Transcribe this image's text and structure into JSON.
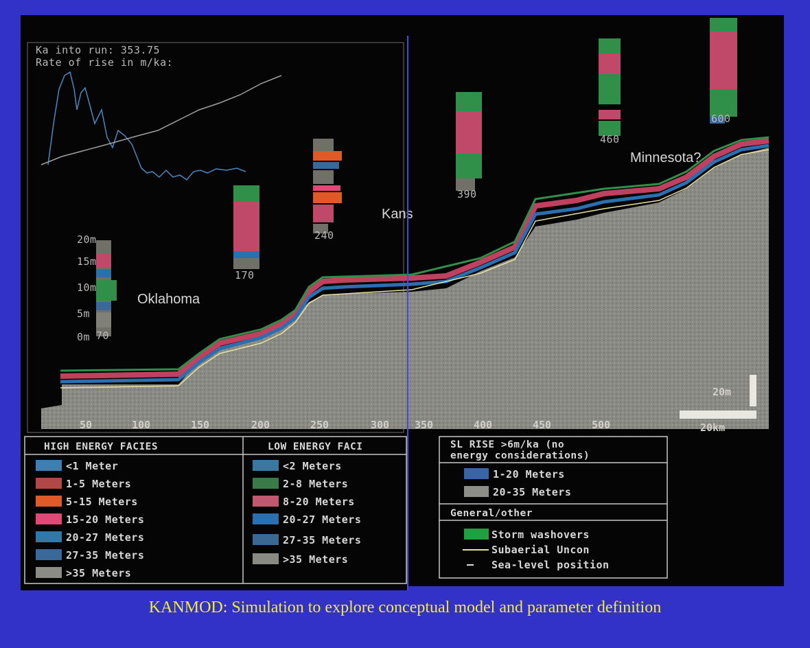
{
  "hud": {
    "run_line": "Ka into run: 353.75",
    "rate_line": "Rate of rise in m/ka:"
  },
  "places": {
    "oklahoma": "Oklahoma",
    "kansas": "Kans",
    "minnesota": "Minnesota?"
  },
  "axis_ticks": [
    "50",
    "100",
    "150",
    "200",
    "250",
    "300",
    "350",
    "400",
    "450",
    "500"
  ],
  "scale": {
    "vertical": "20m",
    "horizontal": "20km"
  },
  "column_labels": [
    "70",
    "170",
    "240",
    "390",
    "460",
    "600"
  ],
  "depth_scale": [
    "20m",
    "15m",
    "10m",
    "5m",
    "0m"
  ],
  "legend": {
    "high_energy": {
      "title": "HIGH ENERGY FACIES",
      "items": [
        {
          "label": "<1 Meter",
          "color": "#3f7fb0"
        },
        {
          "label": "1-5 Meters",
          "color": "#b04848"
        },
        {
          "label": "5-15 Meters",
          "color": "#e05a28"
        },
        {
          "label": "15-20 Meters",
          "color": "#e04878"
        },
        {
          "label": "20-27 Meters",
          "color": "#2f78a8"
        },
        {
          "label": "27-35 Meters",
          "color": "#3a6898"
        },
        {
          "label": ">35 Meters",
          "color": "#8c8c86"
        }
      ]
    },
    "low_energy": {
      "title": "LOW ENERGY FACI",
      "items": [
        {
          "label": "<2 Meters",
          "color": "#3a78a0"
        },
        {
          "label": "2-8 Meters",
          "color": "#3a7a48"
        },
        {
          "label": "8-20 Meters",
          "color": "#c05870"
        },
        {
          "label": "20-27 Meters",
          "color": "#2a70b0"
        },
        {
          "label": "27-35 Meters",
          "color": "#3a6890"
        },
        {
          "label": ">35 Meters",
          "color": "#8a8a84"
        }
      ]
    },
    "sl_rise": {
      "title_line1": "SL RISE >6m/ka (no",
      "title_line2": "energy considerations)",
      "items": [
        {
          "label": "1-20 Meters",
          "color": "#3a64a8"
        },
        {
          "label": "20-35 Meters",
          "color": "#8e8e88"
        }
      ]
    },
    "general": {
      "title": "General/other",
      "items": [
        {
          "label": "Storm washovers",
          "color": "#20a040"
        },
        {
          "label": "Subaerial Uncon",
          "color": "#e8e2a0"
        },
        {
          "label": "Sea-level position",
          "color": "#e0e0e0"
        }
      ]
    }
  },
  "caption": "KANMOD: Simulation to explore conceptual model and parameter definition"
}
